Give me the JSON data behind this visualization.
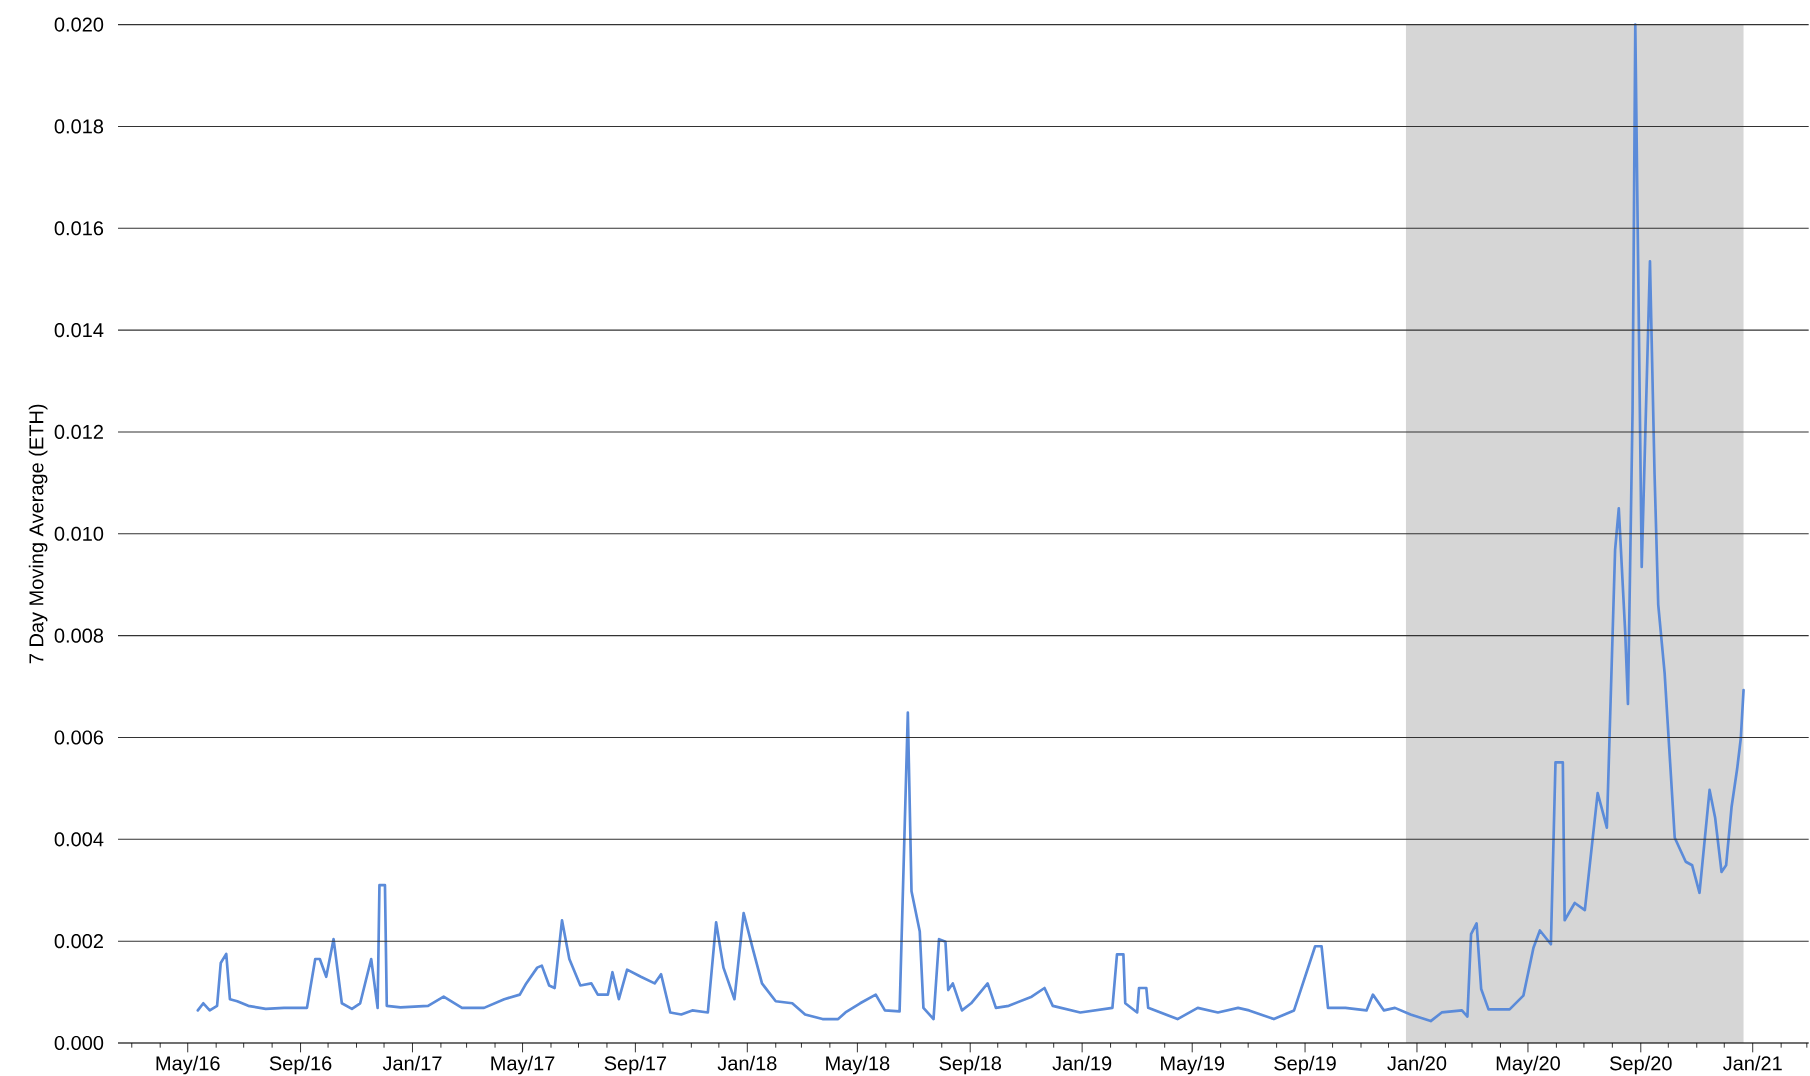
{
  "chart_data": {
    "type": "line",
    "ylabel": "7 Day Moving Average (ETH)",
    "grid": "y",
    "xlim": [
      "2016-02-15",
      "2021-03-03"
    ],
    "ylim": [
      0,
      0.02
    ],
    "xticks": [
      {
        "value": "2016-03",
        "label": null
      },
      {
        "value": "2016-04",
        "label": null
      },
      {
        "value": "2016-05",
        "label": "May/16"
      },
      {
        "value": "2016-06",
        "label": null
      },
      {
        "value": "2016-07",
        "label": null
      },
      {
        "value": "2016-08",
        "label": null
      },
      {
        "value": "2016-09",
        "label": "Sep/16"
      },
      {
        "value": "2016-10",
        "label": null
      },
      {
        "value": "2016-11",
        "label": null
      },
      {
        "value": "2016-12",
        "label": null
      },
      {
        "value": "2017-01",
        "label": "Jan/17"
      },
      {
        "value": "2017-02",
        "label": null
      },
      {
        "value": "2017-03",
        "label": null
      },
      {
        "value": "2017-04",
        "label": null
      },
      {
        "value": "2017-05",
        "label": "May/17"
      },
      {
        "value": "2017-06",
        "label": null
      },
      {
        "value": "2017-07",
        "label": null
      },
      {
        "value": "2017-08",
        "label": null
      },
      {
        "value": "2017-09",
        "label": "Sep/17"
      },
      {
        "value": "2017-10",
        "label": null
      },
      {
        "value": "2017-11",
        "label": null
      },
      {
        "value": "2017-12",
        "label": null
      },
      {
        "value": "2018-01",
        "label": "Jan/18"
      },
      {
        "value": "2018-02",
        "label": null
      },
      {
        "value": "2018-03",
        "label": null
      },
      {
        "value": "2018-04",
        "label": null
      },
      {
        "value": "2018-05",
        "label": "May/18"
      },
      {
        "value": "2018-06",
        "label": null
      },
      {
        "value": "2018-07",
        "label": null
      },
      {
        "value": "2018-08",
        "label": null
      },
      {
        "value": "2018-09",
        "label": "Sep/18"
      },
      {
        "value": "2018-10",
        "label": null
      },
      {
        "value": "2018-11",
        "label": null
      },
      {
        "value": "2018-12",
        "label": null
      },
      {
        "value": "2019-01",
        "label": "Jan/19"
      },
      {
        "value": "2019-02",
        "label": null
      },
      {
        "value": "2019-03",
        "label": null
      },
      {
        "value": "2019-04",
        "label": null
      },
      {
        "value": "2019-05",
        "label": "May/19"
      },
      {
        "value": "2019-06",
        "label": null
      },
      {
        "value": "2019-07",
        "label": null
      },
      {
        "value": "2019-08",
        "label": null
      },
      {
        "value": "2019-09",
        "label": "Sep/19"
      },
      {
        "value": "2019-10",
        "label": null
      },
      {
        "value": "2019-11",
        "label": null
      },
      {
        "value": "2019-12",
        "label": null
      },
      {
        "value": "2020-01",
        "label": "Jan/20"
      },
      {
        "value": "2020-02",
        "label": null
      },
      {
        "value": "2020-03",
        "label": null
      },
      {
        "value": "2020-04",
        "label": null
      },
      {
        "value": "2020-05",
        "label": "May/20"
      },
      {
        "value": "2020-06",
        "label": null
      },
      {
        "value": "2020-07",
        "label": null
      },
      {
        "value": "2020-08",
        "label": null
      },
      {
        "value": "2020-09",
        "label": "Sep/20"
      },
      {
        "value": "2020-10",
        "label": null
      },
      {
        "value": "2020-11",
        "label": null
      },
      {
        "value": "2020-12",
        "label": null
      },
      {
        "value": "2021-01",
        "label": "Jan/21"
      },
      {
        "value": "2021-02",
        "label": null
      },
      {
        "value": "2021-03",
        "label": null
      }
    ],
    "yticks": [
      {
        "value": 0,
        "label": "0.000"
      },
      {
        "value": 0.002,
        "label": "0.002"
      },
      {
        "value": 0.004,
        "label": "0.004"
      },
      {
        "value": 0.006,
        "label": "0.006"
      },
      {
        "value": 0.008,
        "label": "0.008"
      },
      {
        "value": 0.01,
        "label": "0.010"
      },
      {
        "value": 0.012,
        "label": "0.012"
      },
      {
        "value": 0.014,
        "label": "0.014"
      },
      {
        "value": 0.016,
        "label": "0.016"
      },
      {
        "value": 0.018,
        "label": "0.018"
      },
      {
        "value": 0.02,
        "label": "0.020"
      }
    ],
    "bands": [
      {
        "axis": "x",
        "from": "2019-12-20",
        "to": "2020-12-22",
        "color": "#d6d6d6"
      }
    ],
    "series": [
      {
        "color": "#5b8bd9",
        "x": [
          "2016-05-12",
          "2016-05-18",
          "2016-05-25",
          "2016-06-02",
          "2016-06-06",
          "2016-06-12",
          "2016-06-16",
          "2016-06-24",
          "2016-07-06",
          "2016-07-25",
          "2016-08-14",
          "2016-09-08",
          "2016-09-17",
          "2016-09-22",
          "2016-09-29",
          "2016-10-07",
          "2016-10-16",
          "2016-10-27",
          "2016-11-05",
          "2016-11-17",
          "2016-11-24",
          "2016-11-26",
          "2016-12-02",
          "2016-12-04",
          "2016-12-19",
          "2017-01-18",
          "2017-02-04",
          "2017-02-24",
          "2017-03-20",
          "2017-04-11",
          "2017-04-28",
          "2017-05-05",
          "2017-05-17",
          "2017-05-22",
          "2017-05-30",
          "2017-06-05",
          "2017-06-13",
          "2017-06-21",
          "2017-07-03",
          "2017-07-15",
          "2017-07-22",
          "2017-08-02",
          "2017-08-07",
          "2017-08-14",
          "2017-08-23",
          "2017-09-07",
          "2017-09-22",
          "2017-09-29",
          "2017-10-09",
          "2017-10-21",
          "2017-11-02",
          "2017-11-19",
          "2017-11-28",
          "2017-12-06",
          "2017-12-18",
          "2017-12-28",
          "2018-01-07",
          "2018-01-17",
          "2018-02-01",
          "2018-02-19",
          "2018-03-05",
          "2018-03-24",
          "2018-04-10",
          "2018-04-18",
          "2018-05-04",
          "2018-05-21",
          "2018-05-31",
          "2018-06-16",
          "2018-06-25",
          "2018-06-29",
          "2018-07-08",
          "2018-07-12",
          "2018-07-23",
          "2018-07-29",
          "2018-08-05",
          "2018-08-08",
          "2018-08-13",
          "2018-08-23",
          "2018-09-02",
          "2018-09-20",
          "2018-09-29",
          "2018-10-13",
          "2018-11-07",
          "2018-11-21",
          "2018-11-30",
          "2018-12-30",
          "2019-02-03",
          "2019-02-08",
          "2019-02-15",
          "2019-02-17",
          "2019-03-02",
          "2019-03-04",
          "2019-03-12",
          "2019-03-14",
          "2019-04-15",
          "2019-05-07",
          "2019-05-29",
          "2019-06-20",
          "2019-07-02",
          "2019-07-29",
          "2019-08-20",
          "2019-09-12",
          "2019-09-19",
          "2019-09-26",
          "2019-10-15",
          "2019-11-07",
          "2019-11-14",
          "2019-11-26",
          "2019-12-08",
          "2019-12-25",
          "2020-01-16",
          "2020-01-28",
          "2020-02-19",
          "2020-02-25",
          "2020-02-29",
          "2020-03-06",
          "2020-03-11",
          "2020-03-19",
          "2020-04-11",
          "2020-04-26",
          "2020-05-07",
          "2020-05-14",
          "2020-05-26",
          "2020-05-31",
          "2020-06-08",
          "2020-06-10",
          "2020-06-21",
          "2020-07-02",
          "2020-07-16",
          "2020-07-26",
          "2020-08-04",
          "2020-08-08",
          "2020-08-15",
          "2020-08-18",
          "2020-08-23",
          "2020-08-26",
          "2020-09-02",
          "2020-09-11",
          "2020-09-16",
          "2020-09-20",
          "2020-09-27",
          "2020-10-08",
          "2020-10-20",
          "2020-10-27",
          "2020-11-04",
          "2020-11-15",
          "2020-11-21",
          "2020-11-28",
          "2020-12-03",
          "2020-12-09",
          "2020-12-15",
          "2020-12-19",
          "2020-12-22"
        ],
        "values": [
          0.00064,
          0.00078,
          0.00064,
          0.00073,
          0.00157,
          0.00175,
          0.00086,
          0.00082,
          0.00073,
          0.00067,
          0.00069,
          0.00069,
          0.00165,
          0.00165,
          0.0013,
          0.00204,
          0.00078,
          0.00067,
          0.00078,
          0.00165,
          0.00069,
          0.0031,
          0.0031,
          0.00073,
          0.0007,
          0.00073,
          0.00091,
          0.00069,
          0.00069,
          0.00086,
          0.00095,
          0.00117,
          0.00148,
          0.00152,
          0.00113,
          0.00108,
          0.00241,
          0.00165,
          0.00113,
          0.00117,
          0.00095,
          0.00095,
          0.00139,
          0.00086,
          0.00144,
          0.0013,
          0.00117,
          0.00135,
          0.0006,
          0.00056,
          0.00064,
          0.0006,
          0.00237,
          0.00148,
          0.00086,
          0.00255,
          0.00185,
          0.00117,
          0.00082,
          0.00078,
          0.00056,
          0.00047,
          0.00047,
          0.0006,
          0.00078,
          0.00095,
          0.00064,
          0.00062,
          0.00649,
          0.00298,
          0.00219,
          0.00069,
          0.00047,
          0.00204,
          0.00199,
          0.00104,
          0.00117,
          0.00064,
          0.00078,
          0.00117,
          0.00069,
          0.00073,
          0.00091,
          0.00108,
          0.00073,
          0.0006,
          0.00069,
          0.00174,
          0.00174,
          0.00078,
          0.0006,
          0.00108,
          0.00108,
          0.00069,
          0.00047,
          0.00069,
          0.0006,
          0.00069,
          0.00064,
          0.00047,
          0.00064,
          0.0019,
          0.0019,
          0.00069,
          0.00069,
          0.00064,
          0.00095,
          0.00064,
          0.00069,
          0.00056,
          0.00043,
          0.0006,
          0.00064,
          0.00052,
          0.00214,
          0.00235,
          0.00106,
          0.00066,
          0.00066,
          0.00093,
          0.00187,
          0.00221,
          0.00194,
          0.00551,
          0.00551,
          0.00241,
          0.00275,
          0.00261,
          0.00491,
          0.00423,
          0.00969,
          0.0105,
          0.00807,
          0.00666,
          0.01239,
          0.02,
          0.00935,
          0.01535,
          0.01117,
          0.00861,
          0.00726,
          0.00403,
          0.00356,
          0.00349,
          0.00295,
          0.00497,
          0.00443,
          0.00336,
          0.00349,
          0.00464,
          0.00538,
          0.00598,
          0.00693
        ]
      }
    ]
  }
}
